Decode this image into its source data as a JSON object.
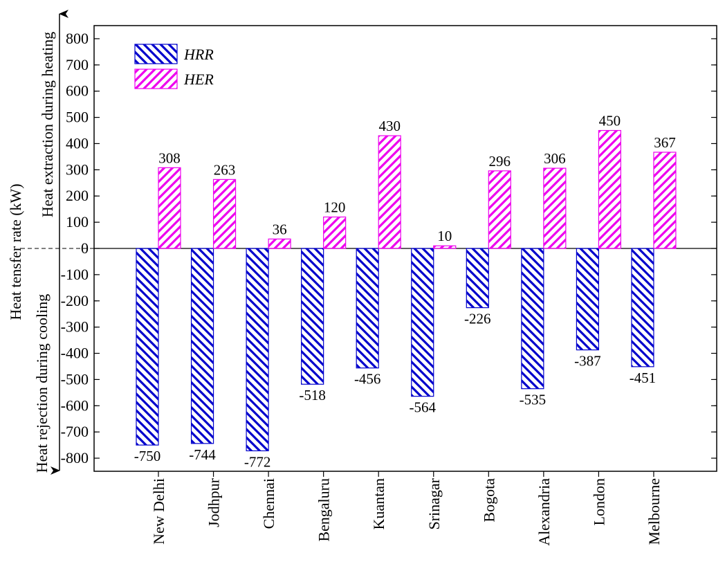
{
  "chart_data": {
    "type": "bar",
    "categories": [
      "New Delhi",
      "Jodhpur",
      "Chennai",
      "Bengaluru",
      "Kuantan",
      "Srinagar",
      "Bogota",
      "Alexandria",
      "London",
      "Melbourne"
    ],
    "series": [
      {
        "name": "HRR",
        "values": [
          -750,
          -744,
          -772,
          -518,
          -456,
          -564,
          -226,
          -535,
          -387,
          -451
        ],
        "color": "#0000cc"
      },
      {
        "name": "HER",
        "values": [
          308,
          263,
          36,
          120,
          430,
          10,
          296,
          306,
          450,
          367
        ],
        "color": "#ee00ee"
      }
    ],
    "ylim": [
      -850,
      850
    ],
    "yticks": [
      -800,
      -700,
      -600,
      -500,
      -400,
      -300,
      -200,
      -100,
      0,
      100,
      200,
      300,
      400,
      500,
      600,
      700,
      800
    ],
    "ylabel": "Heat tensfer rate (kW)",
    "ylabel_upper": "Heat extraction during heating",
    "ylabel_lower": "Heat rejection during cooling",
    "legend_position": "top-left"
  }
}
